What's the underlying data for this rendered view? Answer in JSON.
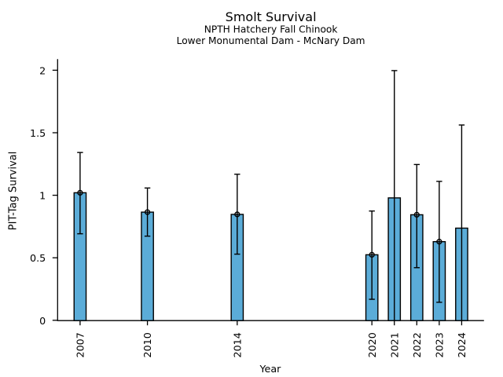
{
  "chart_data": {
    "type": "bar",
    "title": "Smolt Survival",
    "subtitle_line1": "NPTH Hatchery Fall Chinook",
    "subtitle_line2": "Lower Monumental Dam - McNary Dam",
    "xlabel": "Year",
    "ylabel": "PIT-Tag Survival",
    "categories": [
      "2007",
      "2010",
      "2014",
      "2020",
      "2021",
      "2022",
      "2023",
      "2024"
    ],
    "x": [
      2007,
      2010,
      2014,
      2020,
      2021,
      2022,
      2023,
      2024
    ],
    "series": [
      {
        "name": "PIT-Tag Survival",
        "values": [
          1.02,
          0.865,
          0.847,
          0.524,
          0.979,
          0.844,
          0.629,
          0.737
        ],
        "ci_low": [
          0.692,
          0.673,
          0.529,
          0.168,
          0.0,
          0.421,
          0.144,
          0.0
        ],
        "ci_high": [
          1.342,
          1.058,
          1.168,
          0.874,
          1.997,
          1.246,
          1.111,
          1.562
        ],
        "point_marker": [
          true,
          true,
          true,
          true,
          false,
          true,
          true,
          false
        ]
      }
    ],
    "yticks": [
      0,
      0.5,
      1,
      1.5,
      2
    ],
    "ytick_labels": [
      "0",
      "0.5",
      "1",
      "1.5",
      "2"
    ],
    "ylim": [
      0,
      2.09
    ],
    "grid": false,
    "legend": "none",
    "bar_color": "#5BACD8",
    "bar_edge_color": "#000000",
    "errorbar_color": "#000000",
    "axis_color": "#000000",
    "text_color": "#000000"
  }
}
